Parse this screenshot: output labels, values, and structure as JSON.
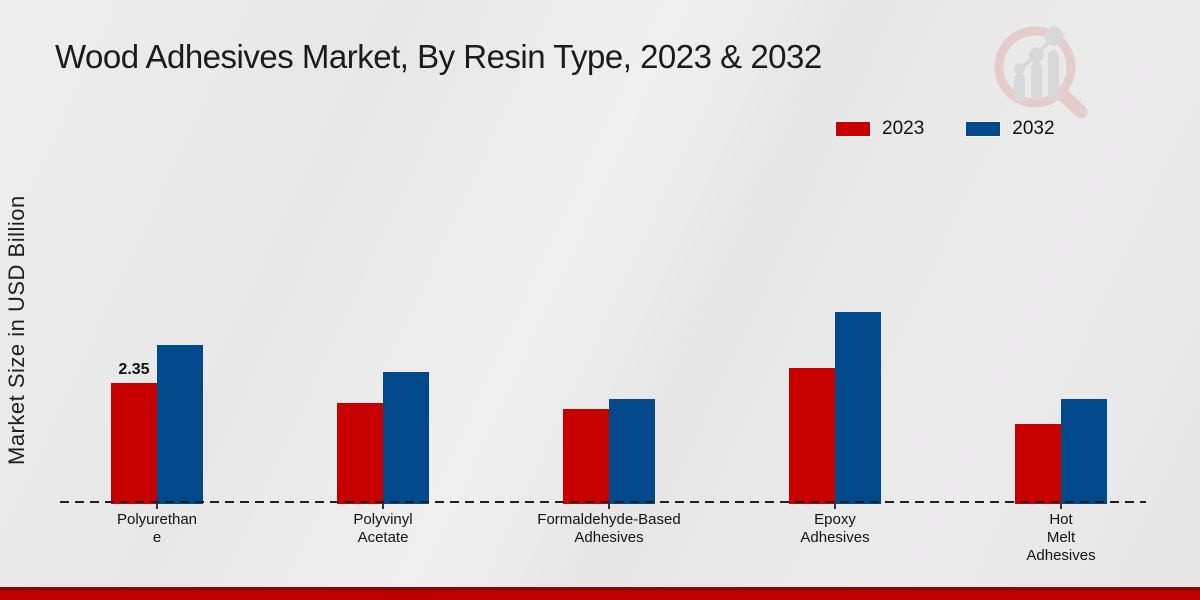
{
  "page": {
    "title": "Wood Adhesives Market, By Resin Type, 2023 & 2032"
  },
  "y_axis": {
    "label": "Market Size in USD Billion"
  },
  "legend": {
    "items": [
      {
        "label": "2023",
        "color": "#c60100"
      },
      {
        "label": "2032",
        "color": "#02498c"
      }
    ]
  },
  "footer": {
    "top_color": "#7a0f08",
    "main_color": "#c00000"
  },
  "watermark": {
    "name": "mrfr-magnifier-bar-chart-logo",
    "ring_color": "#dfb0ad",
    "bars_color": "#c7c7c9"
  },
  "chart_data": {
    "type": "bar",
    "title": "Wood Adhesives Market, By Resin Type, 2023 & 2032",
    "xlabel": "",
    "ylabel": "Market Size in USD Billion",
    "categories": [
      "Polyurethane",
      "Polyvinyl Acetate",
      "Formaldehyde-Based Adhesives",
      "Epoxy Adhesives",
      "Hot Melt Adhesives"
    ],
    "category_label_lines": [
      [
        "Polyurethan",
        "e"
      ],
      [
        "Polyvinyl",
        "Acetate"
      ],
      [
        "Formaldehyde-Based",
        "Adhesives"
      ],
      [
        "Epoxy",
        "Adhesives"
      ],
      [
        "Hot",
        "Melt",
        "Adhesives"
      ]
    ],
    "series": [
      {
        "name": "2023",
        "color": "#c60100",
        "values": [
          2.35,
          1.96,
          1.85,
          2.64,
          1.55
        ]
      },
      {
        "name": "2032",
        "color": "#02498c",
        "values": [
          3.09,
          2.56,
          2.04,
          3.73,
          2.04
        ]
      }
    ],
    "data_labels": [
      {
        "series_index": 0,
        "category_index": 0,
        "text": "2.35"
      }
    ],
    "ylim": [
      0,
      4.2
    ],
    "grid": false,
    "y_tick_labels_visible": false,
    "baseline_style": "dashed",
    "legend_position": "top-right"
  }
}
